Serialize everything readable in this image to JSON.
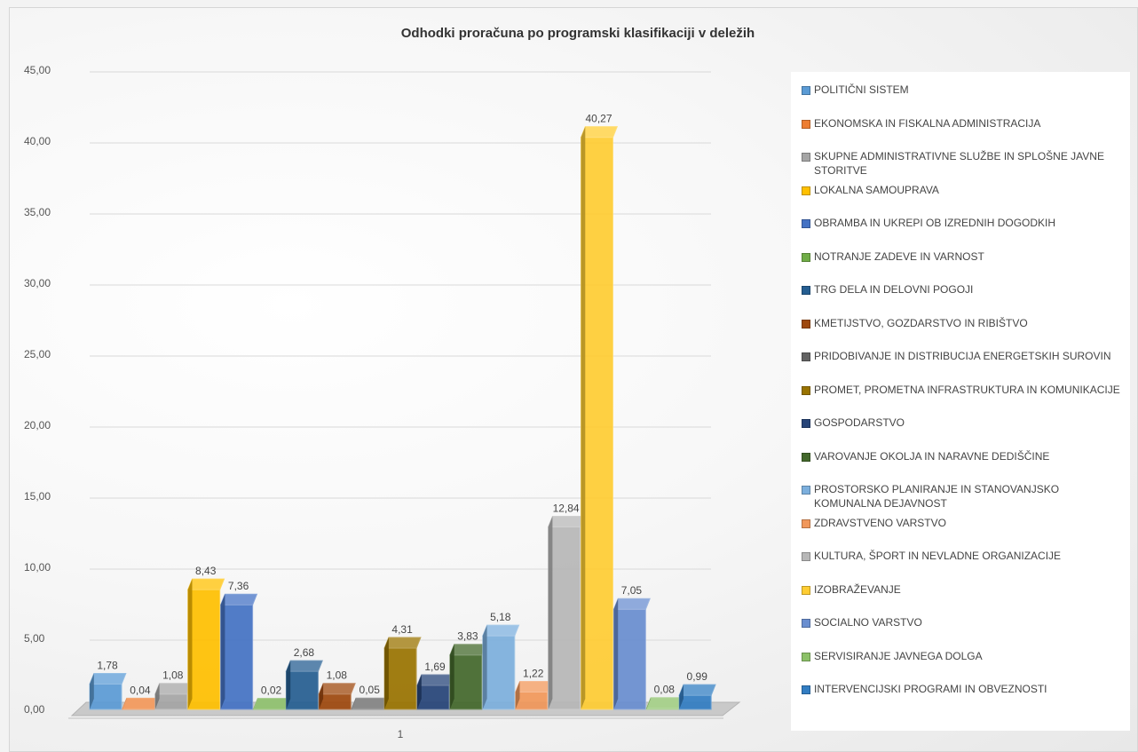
{
  "chart_data": {
    "type": "bar",
    "title": "Odhodki proračuna po programski klasifikaciji v deležih",
    "categories": [
      "1"
    ],
    "ylim": [
      0,
      45
    ],
    "yticks": [
      "0,00",
      "5,00",
      "10,00",
      "15,00",
      "20,00",
      "25,00",
      "30,00",
      "35,00",
      "40,00",
      "45,00"
    ],
    "grid": true,
    "legend_position": "right",
    "series": [
      {
        "name": "POLITIČNI SISTEM",
        "value": 1.78,
        "label": "1,78",
        "color": "#5B9BD5"
      },
      {
        "name": "EKONOMSKA IN FISKALNA ADMINISTRACIJA",
        "value": 0.04,
        "label": "0,04",
        "color": "#ED7D31"
      },
      {
        "name": "SKUPNE ADMINISTRATIVNE SLUŽBE IN SPLOŠNE JAVNE STORITVE",
        "value": 1.08,
        "label": "1,08",
        "color": "#A5A5A5"
      },
      {
        "name": "LOKALNA SAMOUPRAVA",
        "value": 8.43,
        "label": "8,43",
        "color": "#FFC000"
      },
      {
        "name": "OBRAMBA IN UKREPI OB IZREDNIH DOGODKIH",
        "value": 7.36,
        "label": "7,36",
        "color": "#4472C4"
      },
      {
        "name": "NOTRANJE ZADEVE IN VARNOST",
        "value": 0.02,
        "label": "0,02",
        "color": "#70AD47"
      },
      {
        "name": "TRG DELA IN DELOVNI POGOJI",
        "value": 2.68,
        "label": "2,68",
        "color": "#255E91"
      },
      {
        "name": "KMETIJSTVO, GOZDARSTVO IN RIBIŠTVO",
        "value": 1.08,
        "label": "1,08",
        "color": "#9E480E"
      },
      {
        "name": "PRIDOBIVANJE IN DISTRIBUCIJA ENERGETSKIH SUROVIN",
        "value": 0.05,
        "label": "0,05",
        "color": "#636363"
      },
      {
        "name": "PROMET, PROMETNA INFRASTRUKTURA IN KOMUNIKACIJE",
        "value": 4.31,
        "label": "4,31",
        "color": "#997300"
      },
      {
        "name": "GOSPODARSTVO",
        "value": 1.69,
        "label": "1,69",
        "color": "#264478"
      },
      {
        "name": "VAROVANJE OKOLJA IN NARAVNE DEDIŠČINE",
        "value": 3.83,
        "label": "3,83",
        "color": "#43682B"
      },
      {
        "name": "PROSTORSKO PLANIRANJE IN STANOVANJSKO KOMUNALNA DEJAVNOST",
        "value": 5.18,
        "label": "5,18",
        "color": "#7CAFDD"
      },
      {
        "name": "ZDRAVSTVENO VARSTVO",
        "value": 1.22,
        "label": "1,22",
        "color": "#F1975A"
      },
      {
        "name": "KULTURA, ŠPORT IN NEVLADNE ORGANIZACIJE",
        "value": 12.84,
        "label": "12,84",
        "color": "#B7B7B7"
      },
      {
        "name": "IZOBRAŽEVANJE",
        "value": 40.27,
        "label": "40,27",
        "color": "#FFCD33"
      },
      {
        "name": "SOCIALNO VARSTVO",
        "value": 7.05,
        "label": "7,05",
        "color": "#698ED0"
      },
      {
        "name": "SERVISIRANJE JAVNEGA DOLGA",
        "value": 0.08,
        "label": "0,08",
        "color": "#8CC168"
      },
      {
        "name": "INTERVENCIJSKI PROGRAMI IN OBVEZNOSTI",
        "value": 0.99,
        "label": "0,99",
        "color": "#327DC2"
      }
    ]
  }
}
